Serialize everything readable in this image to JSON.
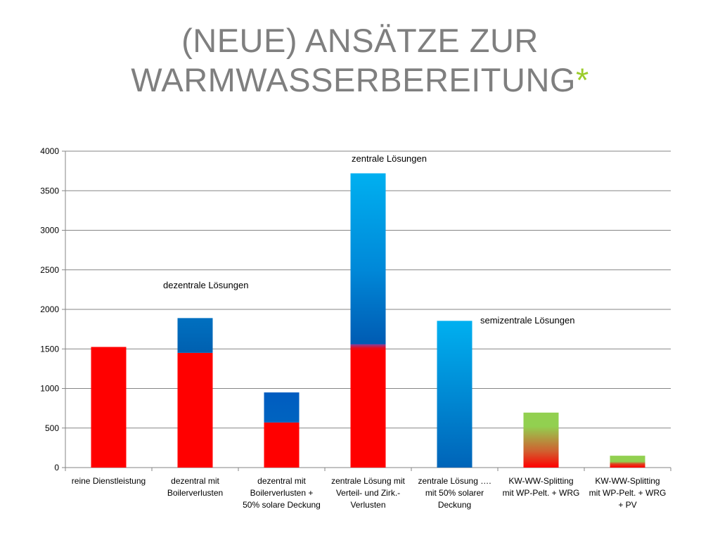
{
  "slide": {
    "title_line1": "(NEUE) ANSÄTZE ZUR",
    "title_line2": "WARMWASSERBEREITUNG",
    "title_star": "*",
    "title_color": "#7f7f7f",
    "star_color": "#9bcc2b"
  },
  "chart_data": {
    "type": "bar",
    "stacked": true,
    "ylim": [
      0,
      4000
    ],
    "yticks": [
      0,
      500,
      1000,
      1500,
      2000,
      2500,
      3000,
      3500,
      4000
    ],
    "grid": true,
    "categories": [
      [
        "reine Dienstleistung"
      ],
      [
        "dezentral mit",
        "Boilerverlusten"
      ],
      [
        "dezentral mit",
        "Boilerverlusten +",
        "50% solare Deckung"
      ],
      [
        "zentrale Lösung mit",
        "Verteil- und Zirk.-",
        "Verlusten"
      ],
      [
        "zentrale Lösung ….",
        "mit 50% solarer",
        "Deckung"
      ],
      [
        "KW-WW-Splitting",
        "mit WP-Pelt. + WRG"
      ],
      [
        "KW-WW-Splitting",
        "mit WP-Pelt. +  WRG",
        "+ PV"
      ]
    ],
    "bars": [
      {
        "total": 1525,
        "segments": [
          {
            "value": 1525,
            "color": "red"
          }
        ]
      },
      {
        "total": 1890,
        "segments": [
          {
            "value": 1450,
            "color": "red"
          },
          {
            "value": 440,
            "color": "blue"
          }
        ]
      },
      {
        "total": 950,
        "segments": [
          {
            "value": 570,
            "color": "red"
          },
          {
            "value": 380,
            "color": "blue"
          }
        ]
      },
      {
        "total": 3720,
        "segments": [
          {
            "value": 1500,
            "color": "red"
          },
          {
            "value": 2220,
            "color": "blue"
          }
        ]
      },
      {
        "total": 1855,
        "segments": [
          {
            "value": 1855,
            "color": "blue"
          }
        ]
      },
      {
        "total": 695,
        "segments": [
          {
            "value": 695,
            "color": "red-to-green"
          }
        ]
      },
      {
        "total": 150,
        "segments": [
          {
            "value": 150,
            "color": "red-to-green"
          }
        ]
      }
    ],
    "annotations": [
      {
        "text": "dezentrale Lösungen",
        "near_bar": 1
      },
      {
        "text": "zentrale Lösungen",
        "near_bar": 3
      },
      {
        "text": "semizentrale Lösungen",
        "near_bar": 4
      }
    ],
    "colors": {
      "red": "#ff0000",
      "blue_dark": "#0060b0",
      "blue_light": "#00b0f0",
      "green": "#92d050",
      "gridline": "#868686"
    }
  }
}
